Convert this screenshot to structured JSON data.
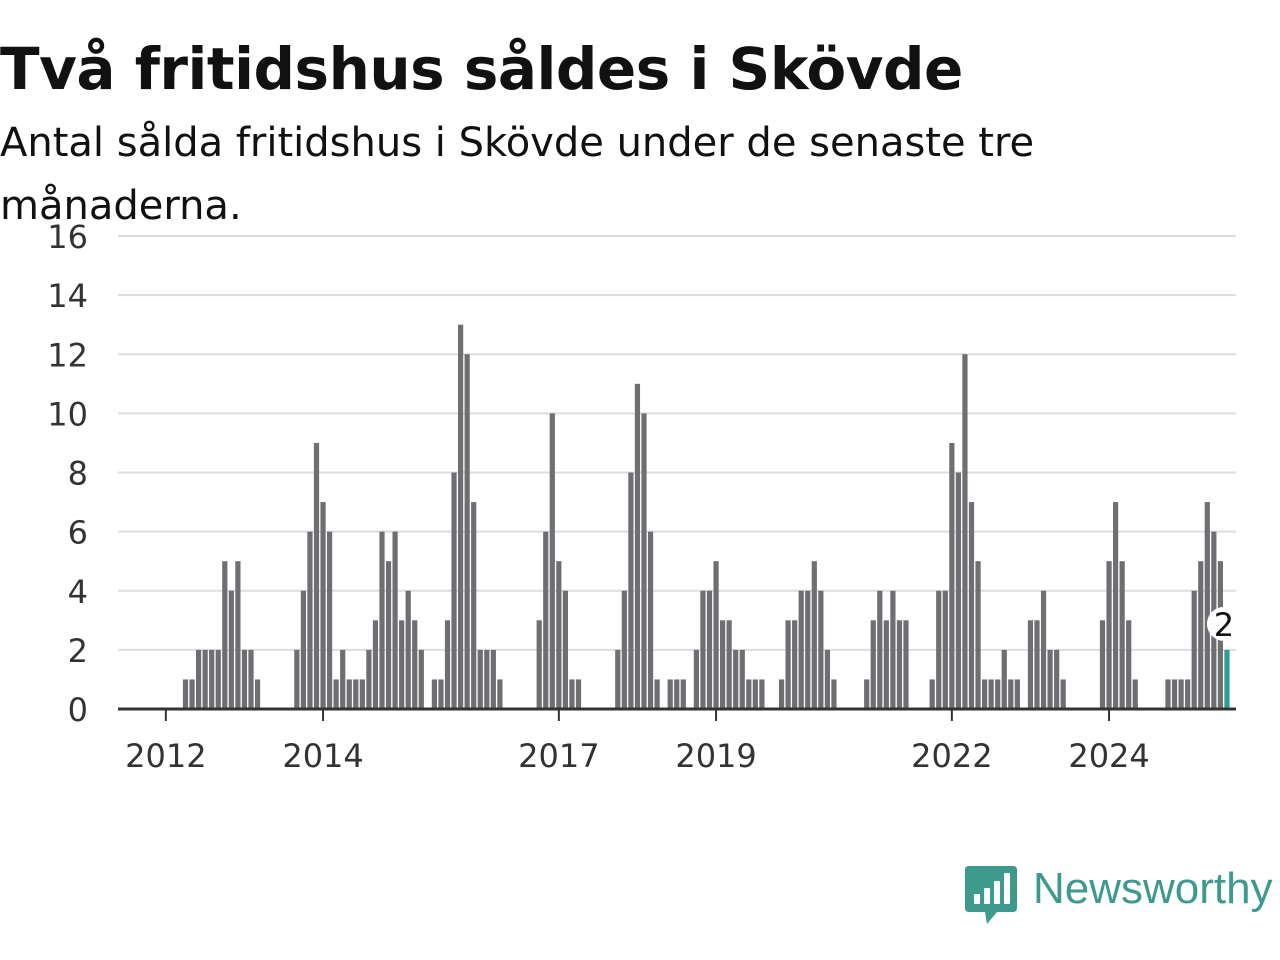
{
  "title": "Två fritidshus såldes i Skövde",
  "subtitle": "Antal sålda fritidshus i Skövde under de senaste tre månaderna.",
  "brand": {
    "name": "Newsworthy",
    "icon": "newsworthy-logo-icon",
    "color": "#3f9a8e"
  },
  "chart_data": {
    "type": "bar",
    "title": "Två fritidshus såldes i Skövde",
    "subtitle": "Antal sålda fritidshus i Skövde under de senaste tre månaderna.",
    "ylim": [
      0,
      16
    ],
    "yticks": [
      "0",
      "2",
      "4",
      "6",
      "8",
      "10",
      "12",
      "14",
      "16"
    ],
    "xticks": [
      "2012",
      "2014",
      "2017",
      "2019",
      "2022",
      "2024"
    ],
    "start_month": "2011-06",
    "grid": true,
    "bar_color": "#6e6e73",
    "highlight_color": "#2a9d8f",
    "highlight_label": "2",
    "values": [
      0,
      0,
      0,
      0,
      0,
      0,
      0,
      0,
      0,
      0,
      1,
      1,
      2,
      2,
      2,
      2,
      5,
      4,
      5,
      2,
      2,
      1,
      0,
      0,
      0,
      0,
      0,
      2,
      4,
      6,
      9,
      7,
      6,
      1,
      2,
      1,
      1,
      1,
      2,
      3,
      6,
      5,
      6,
      3,
      4,
      3,
      2,
      0,
      1,
      1,
      3,
      8,
      13,
      12,
      7,
      2,
      2,
      2,
      1,
      0,
      0,
      0,
      0,
      0,
      3,
      6,
      10,
      5,
      4,
      1,
      1,
      0,
      0,
      0,
      0,
      0,
      2,
      4,
      8,
      11,
      10,
      6,
      1,
      0,
      1,
      1,
      1,
      0,
      2,
      4,
      4,
      5,
      3,
      3,
      2,
      2,
      1,
      1,
      1,
      0,
      0,
      1,
      3,
      3,
      4,
      4,
      5,
      4,
      2,
      1,
      0,
      0,
      0,
      0,
      1,
      3,
      4,
      3,
      4,
      3,
      3,
      0,
      0,
      0,
      1,
      4,
      4,
      9,
      8,
      12,
      7,
      5,
      1,
      1,
      1,
      2,
      1,
      1,
      0,
      3,
      3,
      4,
      2,
      2,
      1,
      0,
      0,
      0,
      0,
      0,
      3,
      5,
      7,
      5,
      3,
      1,
      0,
      0,
      0,
      0,
      1,
      1,
      1,
      1,
      4,
      5,
      7,
      6,
      5,
      2
    ]
  }
}
